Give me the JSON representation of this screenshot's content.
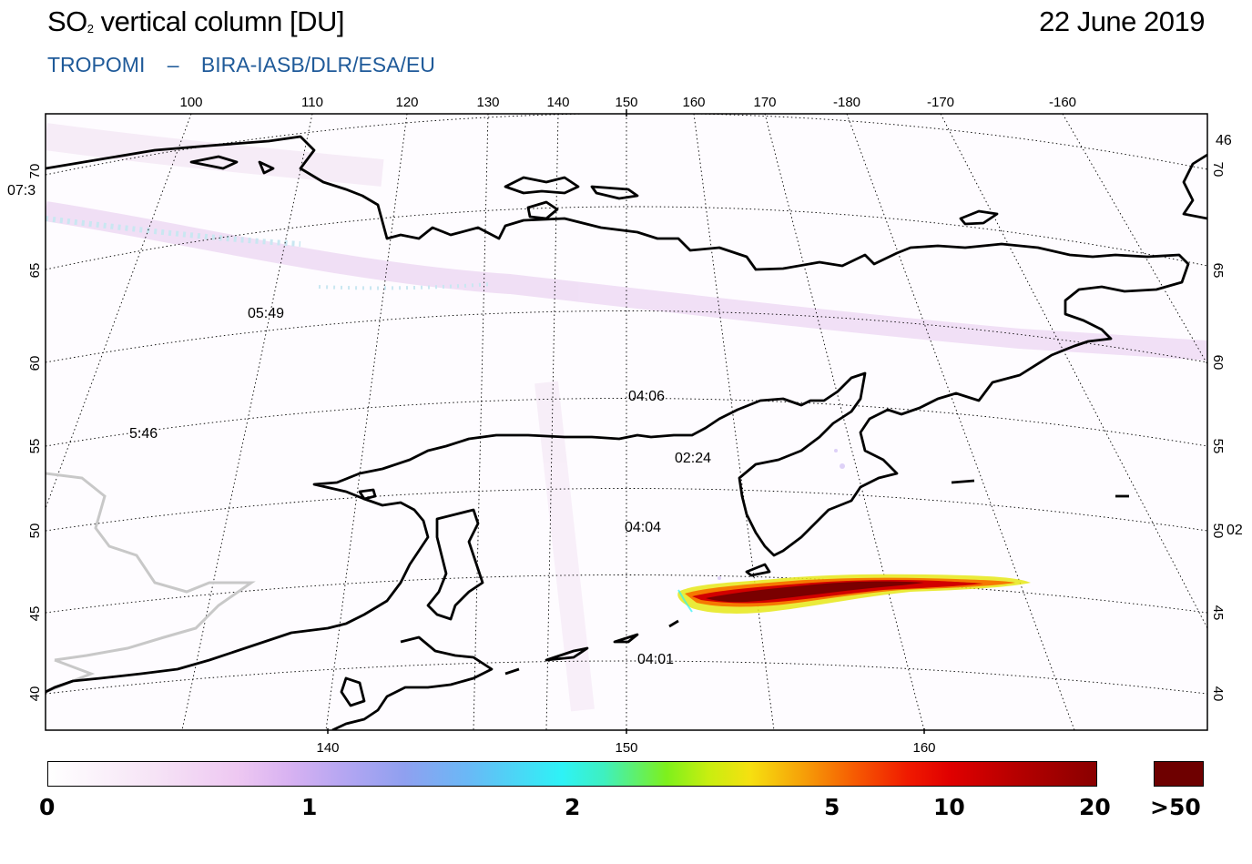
{
  "header": {
    "title_prefix": "SO",
    "title_sub": "2",
    "title_suffix": " vertical column [DU]",
    "date": "22 June 2019",
    "subtitle_parts": [
      "TROPOMI",
      "–",
      "BIRA-IASB/DLR/ESA/EU"
    ]
  },
  "map": {
    "top_lon_labels": [
      "100",
      "110",
      "120",
      "130",
      "140",
      "150",
      "160",
      "170",
      "-180",
      "-170",
      "-160"
    ],
    "bottom_lon_labels": [
      "140",
      "150",
      "160"
    ],
    "left_lat_labels": [
      "70",
      "65",
      "60",
      "55",
      "50",
      "45",
      "40"
    ],
    "right_lat_labels": [
      "70",
      "65",
      "60",
      "55",
      "50",
      "45",
      "40"
    ],
    "edge_labels": {
      "left_top": "07:3",
      "right_top": "46",
      "right_mid": "02"
    },
    "orbit_times": [
      "05:49",
      "04:06",
      "5:46",
      "02:24",
      "04:04",
      "04:01"
    ],
    "colors": {
      "coastline": "#000000",
      "border": "#c8c8c8",
      "plume_core": "#7a0000"
    }
  },
  "colorbar": {
    "tick_labels": [
      "0",
      "1",
      "2",
      "5",
      "10",
      "20",
      ">50"
    ],
    "unit": "DU"
  }
}
